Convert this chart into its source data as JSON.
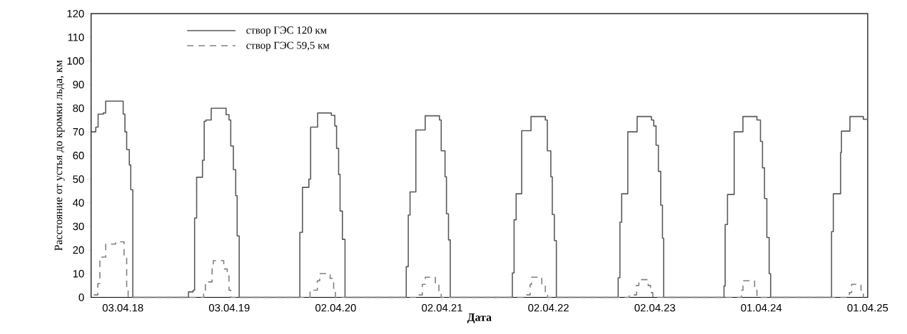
{
  "chart_data": {
    "type": "step",
    "xlabel": "Дата",
    "ylabel": "Расстояние от устья до кромки льда, км",
    "xlim": [
      "2017-12-15",
      "2025-04-01"
    ],
    "ylim": [
      0,
      120
    ],
    "xticks": [
      {
        "value": "2018-04-03",
        "label": "03.04.18"
      },
      {
        "value": "2019-04-03",
        "label": "03.04.19"
      },
      {
        "value": "2020-04-02",
        "label": "02.04.20"
      },
      {
        "value": "2021-04-02",
        "label": "02.04.21"
      },
      {
        "value": "2022-04-02",
        "label": "02.04.22"
      },
      {
        "value": "2023-04-02",
        "label": "02.04.23"
      },
      {
        "value": "2024-04-01",
        "label": "01.04.24"
      },
      {
        "value": "2025-04-01",
        "label": "01.04.25"
      }
    ],
    "yticks": [
      0,
      10,
      20,
      30,
      40,
      50,
      60,
      70,
      80,
      90,
      100,
      110,
      120
    ],
    "legend": "top left",
    "series": [
      {
        "name": "створ ГЭС 120 км",
        "color": "#5a5a5a",
        "line_style": "solid",
        "x": [
          "2017-12-15",
          "2017-12-31",
          "2018-01-08",
          "2018-01-26",
          "2018-02-03",
          "2018-04-04",
          "2018-04-10",
          "2018-04-16",
          "2018-04-25",
          "2018-04-30",
          "2018-05-07",
          "2018-11-14",
          "2018-11-30",
          "2018-12-05",
          "2018-12-12",
          "2019-01-01",
          "2019-01-07",
          "2019-01-13",
          "2019-01-31",
          "2019-03-23",
          "2019-04-02",
          "2019-04-08",
          "2019-04-17",
          "2019-04-25",
          "2019-04-30",
          "2019-05-07",
          "2019-12-01",
          "2019-12-10",
          "2020-01-01",
          "2020-01-07",
          "2020-01-31",
          "2020-03-18",
          "2020-03-30",
          "2020-04-05",
          "2020-04-12",
          "2020-04-17",
          "2020-04-25",
          "2020-05-04",
          "2020-11-30",
          "2020-12-07",
          "2020-12-13",
          "2021-01-02",
          "2021-02-03",
          "2021-03-24",
          "2021-03-30",
          "2021-04-12",
          "2021-04-17",
          "2021-04-24",
          "2021-04-30",
          "2021-11-29",
          "2021-12-05",
          "2021-12-12",
          "2021-12-31",
          "2022-02-01",
          "2022-03-22",
          "2022-03-29",
          "2022-04-10",
          "2022-04-15",
          "2022-04-22",
          "2022-04-29",
          "2022-11-27",
          "2022-12-03",
          "2022-12-09",
          "2022-12-30",
          "2023-01-31",
          "2023-03-21",
          "2023-03-29",
          "2023-04-06",
          "2023-04-14",
          "2023-04-22",
          "2023-04-28",
          "2023-05-02",
          "2023-11-25",
          "2023-11-29",
          "2023-12-07",
          "2023-12-30",
          "2024-01-29",
          "2024-03-17",
          "2024-03-29",
          "2024-04-05",
          "2024-04-12",
          "2024-04-20",
          "2024-04-28",
          "2024-05-03",
          "2024-11-28",
          "2024-12-04",
          "2024-12-29",
          "2025-01-01",
          "2025-01-30",
          "2025-03-17",
          "2025-04-01"
        ],
        "values": [
          70,
          72,
          77.5,
          78,
          83,
          77.5,
          70,
          62.5,
          56,
          45.5,
          0,
          2.3,
          3,
          33.5,
          50.8,
          58,
          74.5,
          75,
          80,
          77.3,
          75,
          64,
          54,
          43,
          26,
          0,
          27.5,
          46.5,
          50,
          72,
          78,
          77,
          72.5,
          63,
          52,
          36.5,
          24.5,
          0,
          13,
          34.8,
          44.6,
          70.8,
          76.8,
          75,
          62,
          51,
          35.3,
          24.3,
          0,
          10.3,
          32.8,
          43.8,
          70.5,
          76.5,
          75,
          62,
          51,
          35,
          24,
          0,
          8.3,
          31.8,
          43.8,
          70,
          76.5,
          75,
          72.5,
          64.3,
          53.3,
          39,
          25,
          0,
          4.8,
          30.8,
          43.5,
          70,
          76.5,
          75,
          66,
          54.8,
          41.8,
          25.3,
          10,
          0,
          27.8,
          43.8,
          61.3,
          70.3,
          76.5,
          75.3,
          75.3
        ]
      },
      {
        "name": "створ ГЭС 59,5 км",
        "color": "#808080",
        "line_style": "dashed",
        "x": [
          "2017-12-24",
          "2018-01-07",
          "2018-01-14",
          "2018-02-03",
          "2018-03-09",
          "2018-04-07",
          "2018-04-16",
          "2018-04-21",
          "2019-01-05",
          "2019-01-11",
          "2019-02-03",
          "2019-02-07",
          "2019-03-15",
          "2019-03-27",
          "2019-04-02",
          "2019-04-08",
          "2020-01-05",
          "2020-01-30",
          "2020-02-07",
          "2020-03-14",
          "2020-03-26",
          "2020-04-01",
          "2021-01-08",
          "2021-01-24",
          "2021-02-03",
          "2021-03-10",
          "2021-03-22",
          "2021-03-30",
          "2022-01-07",
          "2022-01-29",
          "2022-02-03",
          "2022-03-10",
          "2022-03-22",
          "2022-03-30",
          "2023-01-04",
          "2023-01-29",
          "2023-02-06",
          "2023-03-10",
          "2023-03-18",
          "2023-03-26",
          "2024-01-24",
          "2024-01-29",
          "2024-03-09",
          "2024-03-17",
          "2025-01-28",
          "2025-02-05",
          "2025-03-09",
          "2025-03-17"
        ],
        "values": [
          1,
          5.8,
          17,
          22.5,
          23.5,
          16.8,
          4,
          0,
          2,
          6.5,
          12,
          15.5,
          12,
          9,
          3,
          0,
          3,
          7,
          10,
          8,
          3,
          0,
          1,
          5.5,
          8.5,
          6,
          2,
          0,
          1,
          5.5,
          8.5,
          5,
          2,
          0,
          1,
          5,
          7.5,
          5,
          2,
          0,
          3,
          7,
          3,
          0,
          2,
          5.5,
          3,
          0
        ]
      }
    ]
  }
}
